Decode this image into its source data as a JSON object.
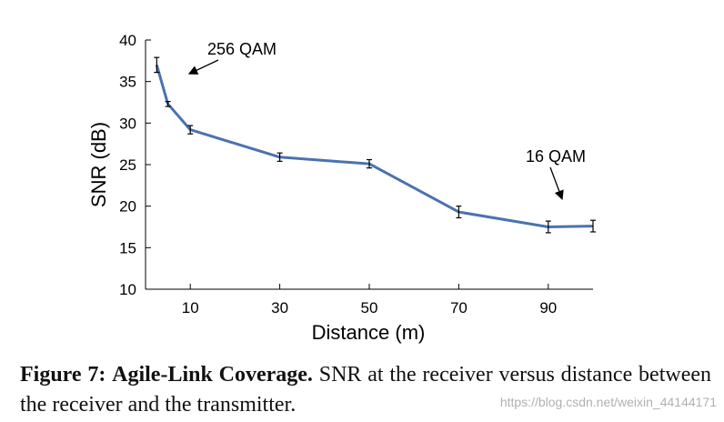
{
  "chart_data": {
    "type": "line",
    "title": "",
    "xlabel": "Distance (m)",
    "ylabel": "SNR (dB)",
    "xlim": [
      0,
      100
    ],
    "ylim": [
      10,
      40
    ],
    "xticks": [
      10,
      30,
      50,
      70,
      90
    ],
    "yticks": [
      10,
      15,
      20,
      25,
      30,
      35,
      40
    ],
    "grid": false,
    "line_color": "#4a72b0",
    "series": [
      {
        "name": "SNR",
        "x": [
          2.5,
          5,
          10,
          30,
          50,
          70,
          90,
          100
        ],
        "y": [
          37.0,
          32.3,
          29.2,
          25.9,
          25.1,
          19.3,
          17.5,
          17.6
        ],
        "err": [
          0.9,
          0.3,
          0.5,
          0.5,
          0.5,
          0.7,
          0.7,
          0.7
        ]
      }
    ],
    "annotations": [
      {
        "text": "256 QAM",
        "arrow_to": [
          10,
          36
        ]
      },
      {
        "text": "16 QAM",
        "arrow_to": [
          93,
          21
        ]
      }
    ]
  },
  "caption": {
    "label": "Figure 7:",
    "heading": "Agile-Link Coverage.",
    "body": "SNR at the receiver versus distance between the receiver and the transmitter."
  },
  "watermark": "https://blog.csdn.net/weixin_44144171"
}
